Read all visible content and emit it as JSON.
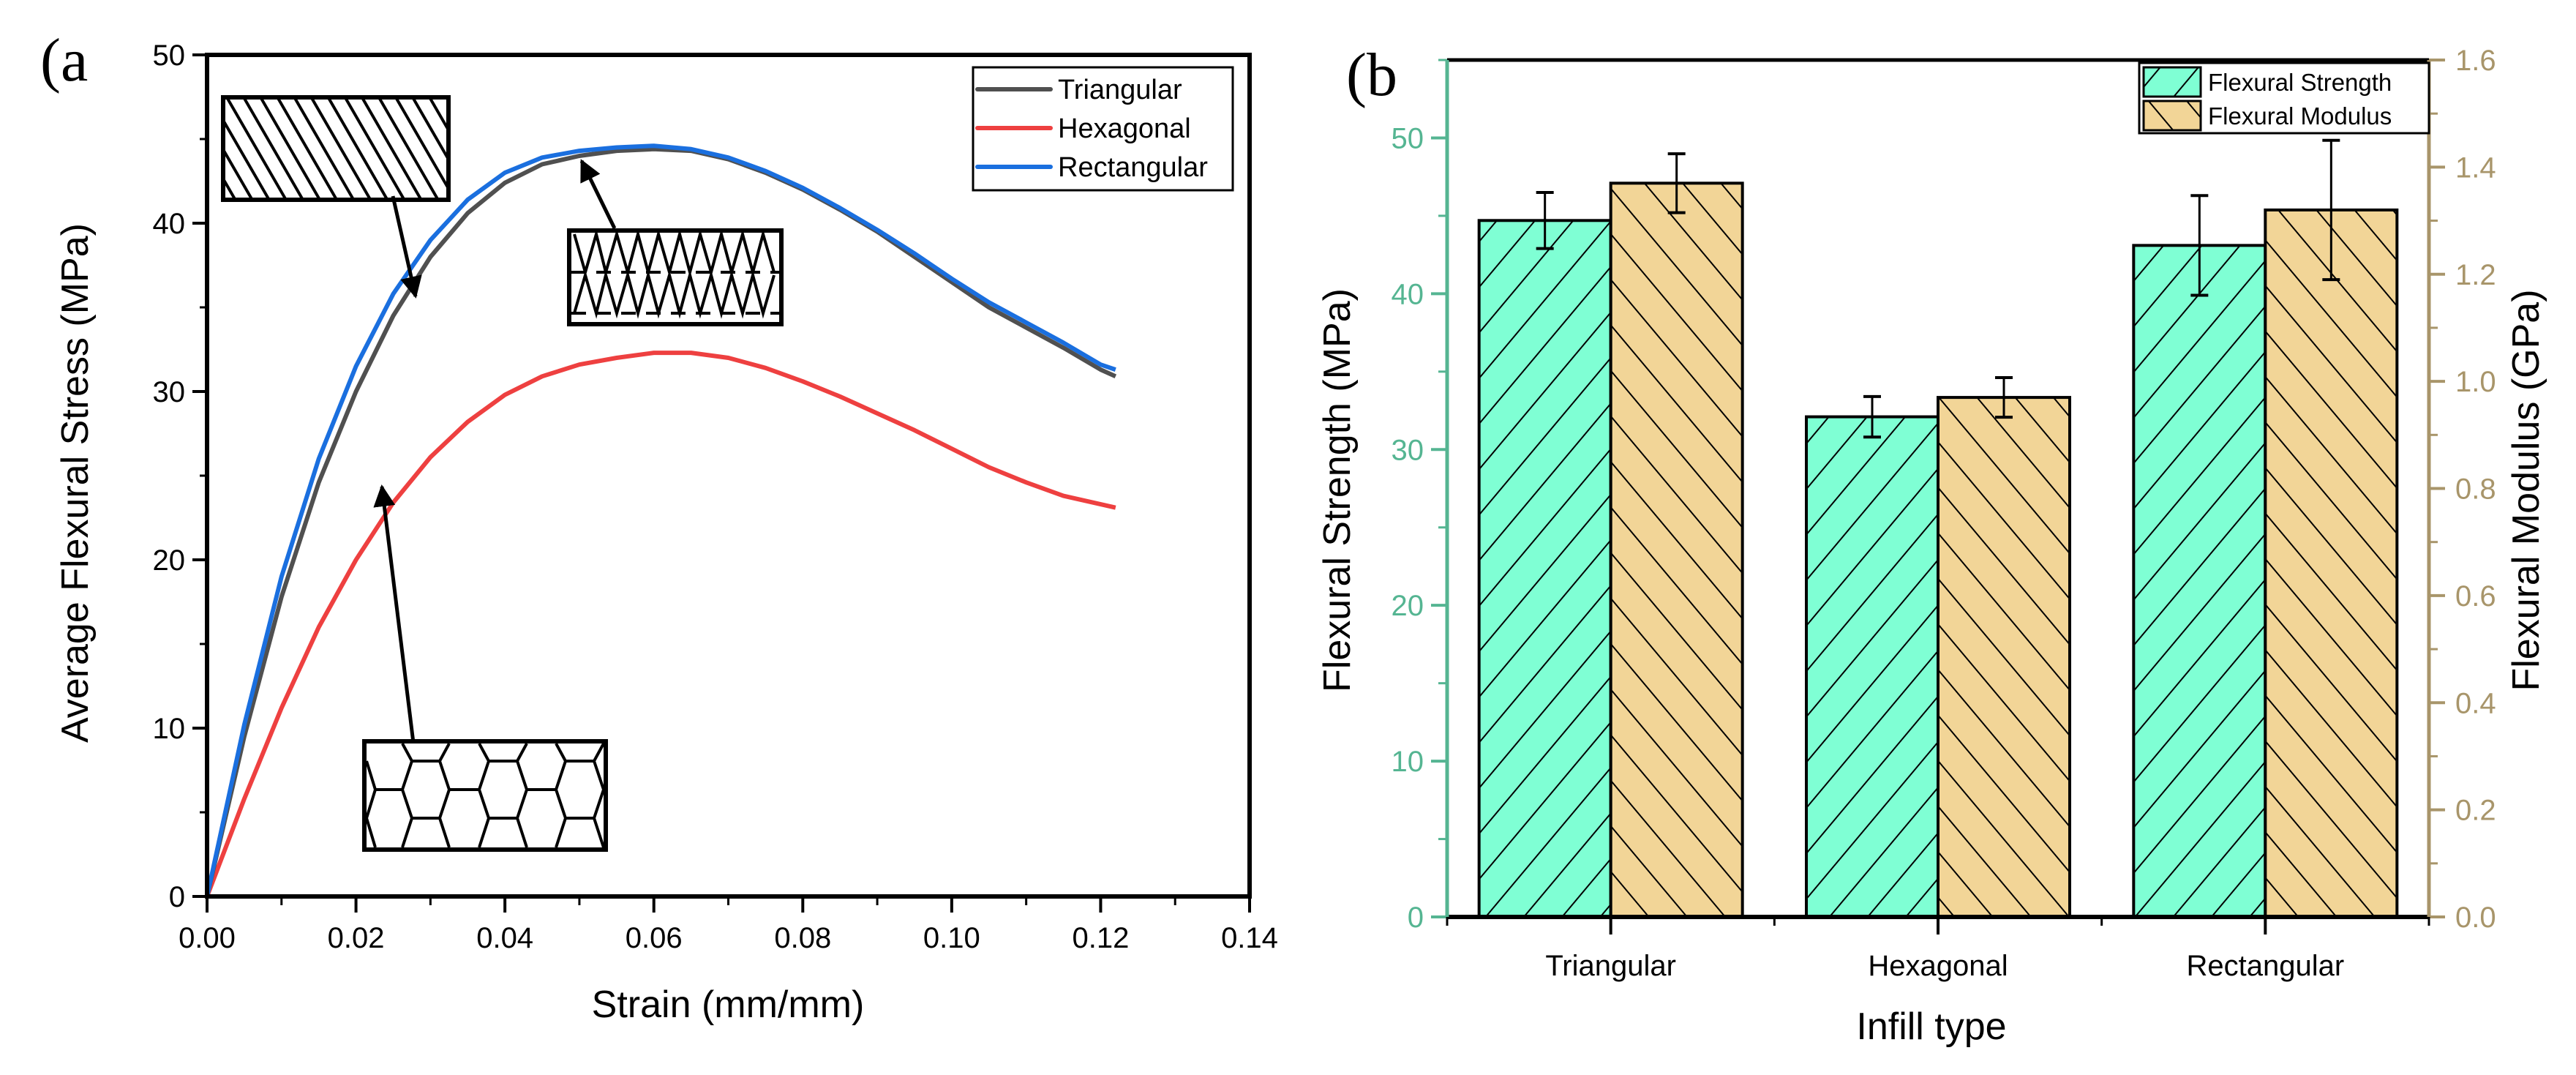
{
  "chart_data": [
    {
      "panel": "(a",
      "type": "line",
      "title": "",
      "xlabel": "Strain (mm/mm)",
      "ylabel": "Average Flexural Stress (MPa)",
      "xlim": [
        0,
        0.14
      ],
      "ylim": [
        0,
        50
      ],
      "xticks": [
        "0.00",
        "0.02",
        "0.04",
        "0.06",
        "0.08",
        "0.10",
        "0.12",
        "0.14"
      ],
      "yticks": [
        "0",
        "10",
        "20",
        "30",
        "40",
        "50"
      ],
      "grid": false,
      "legend_position": "top-right",
      "series": [
        {
          "name": "Triangular",
          "color": "#505050",
          "x": [
            0,
            0.005,
            0.01,
            0.015,
            0.02,
            0.025,
            0.03,
            0.035,
            0.04,
            0.045,
            0.05,
            0.055,
            0.06,
            0.065,
            0.07,
            0.075,
            0.08,
            0.085,
            0.09,
            0.095,
            0.1,
            0.105,
            0.11,
            0.115,
            0.12,
            0.122
          ],
          "y": [
            0,
            9.5,
            17.8,
            24.6,
            30.0,
            34.5,
            38.0,
            40.6,
            42.4,
            43.5,
            44.0,
            44.3,
            44.4,
            44.3,
            43.8,
            43.0,
            42.0,
            40.8,
            39.5,
            38.0,
            36.5,
            35.0,
            33.8,
            32.6,
            31.3,
            30.9
          ]
        },
        {
          "name": "Hexagonal",
          "color": "#ee4040",
          "x": [
            0,
            0.005,
            0.01,
            0.015,
            0.02,
            0.025,
            0.03,
            0.035,
            0.04,
            0.045,
            0.05,
            0.055,
            0.06,
            0.065,
            0.07,
            0.075,
            0.08,
            0.085,
            0.09,
            0.095,
            0.1,
            0.105,
            0.11,
            0.115,
            0.12,
            0.122
          ],
          "y": [
            0,
            5.8,
            11.2,
            16.0,
            20.0,
            23.4,
            26.1,
            28.2,
            29.8,
            30.9,
            31.6,
            32.0,
            32.3,
            32.3,
            32.0,
            31.4,
            30.6,
            29.7,
            28.7,
            27.7,
            26.6,
            25.5,
            24.6,
            23.8,
            23.3,
            23.1
          ]
        },
        {
          "name": "Rectangular",
          "color": "#1a6fdf",
          "x": [
            0,
            0.005,
            0.01,
            0.015,
            0.02,
            0.025,
            0.03,
            0.035,
            0.04,
            0.045,
            0.05,
            0.055,
            0.06,
            0.065,
            0.07,
            0.075,
            0.08,
            0.085,
            0.09,
            0.095,
            0.1,
            0.105,
            0.11,
            0.115,
            0.12,
            0.122
          ],
          "y": [
            0,
            10.2,
            19.0,
            26.0,
            31.5,
            35.8,
            39.0,
            41.4,
            43.0,
            43.9,
            44.3,
            44.5,
            44.6,
            44.4,
            43.9,
            43.1,
            42.1,
            40.9,
            39.6,
            38.2,
            36.7,
            35.3,
            34.1,
            32.9,
            31.6,
            31.3
          ]
        }
      ],
      "annotations": [
        {
          "label": "rectangular-infill-inset",
          "points_to": "Rectangular"
        },
        {
          "label": "triangular-infill-inset",
          "points_to": "Triangular"
        },
        {
          "label": "hexagonal-infill-inset",
          "points_to": "Hexagonal"
        }
      ]
    },
    {
      "panel": "(b",
      "type": "bar",
      "title": "",
      "xlabel": "Infill type",
      "ylabel": "Flexural Strength (MPa)",
      "y2label": "Flexural Modulus (GPa)",
      "categories": [
        "Triangular",
        "Hexagonal",
        "Rectangular"
      ],
      "ylim": [
        0,
        55
      ],
      "y2lim": [
        0,
        1.6
      ],
      "yticks": [
        "0",
        "10",
        "20",
        "30",
        "40",
        "50"
      ],
      "y2ticks": [
        "0.0",
        "0.2",
        "0.4",
        "0.6",
        "0.8",
        "1.0",
        "1.2",
        "1.4",
        "1.6"
      ],
      "grid": false,
      "legend_position": "top-right",
      "series": [
        {
          "name": "Flexural Strength",
          "axis": "left",
          "color": "#7fffd4",
          "values": [
            44.7,
            32.1,
            43.1
          ],
          "errors": [
            1.8,
            1.3,
            3.2
          ]
        },
        {
          "name": "Flexural Modulus",
          "axis": "right",
          "color": "#f2d597",
          "values": [
            1.37,
            0.97,
            1.32
          ],
          "errors": [
            0.055,
            0.037,
            0.13
          ]
        }
      ],
      "axis_colors": {
        "left": "#55b592",
        "right": "#a8956a"
      }
    }
  ]
}
